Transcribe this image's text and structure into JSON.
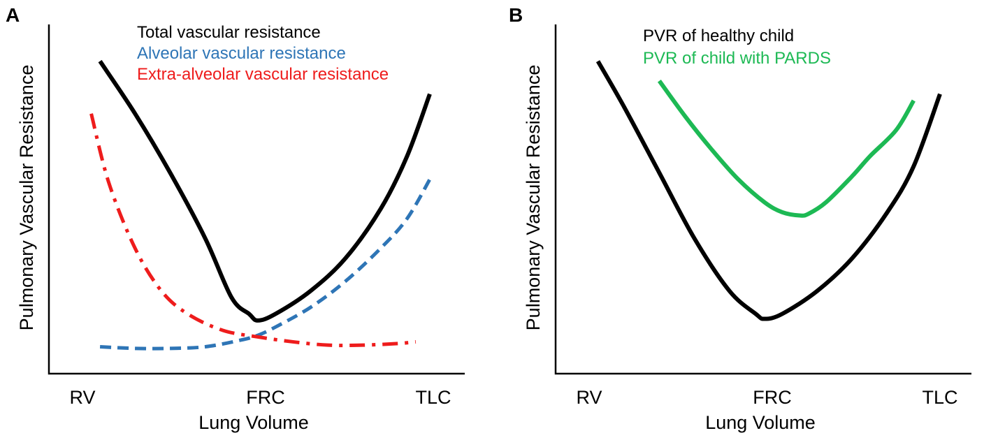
{
  "colors": {
    "total": "#000000",
    "alveolar": "#2E75B6",
    "extra_alveolar": "#EE1C1C",
    "healthy": "#000000",
    "pards": "#1DB954"
  },
  "chart_data": [
    {
      "panel": "A",
      "type": "line",
      "xlabel": "Lung Volume",
      "ylabel": "Pulmonary Vascular Resistance",
      "xtick_labels": [
        "RV",
        "FRC",
        "TLC"
      ],
      "x_range": [
        0,
        2
      ],
      "y_range": [
        0,
        100
      ],
      "grid": false,
      "legend_placement": "top",
      "series": [
        {
          "name": "Total vascular resistance",
          "color_key": "total",
          "style": "solid",
          "x": [
            0.1,
            0.3,
            0.5,
            0.7,
            0.85,
            0.95,
            1.0,
            1.1,
            1.3,
            1.5,
            1.7,
            1.85,
            1.98
          ],
          "y": [
            92,
            76,
            58,
            38,
            20,
            15,
            13,
            15,
            22,
            32,
            47,
            63,
            82
          ]
        },
        {
          "name": "Alveolar vascular resistance",
          "color_key": "alveolar",
          "style": "dashed",
          "x": [
            0.1,
            0.3,
            0.5,
            0.7,
            0.9,
            1.0,
            1.1,
            1.3,
            1.5,
            1.7,
            1.85,
            1.98
          ],
          "y": [
            5,
            4.5,
            4.5,
            5,
            7,
            8.5,
            11,
            17,
            25,
            35,
            44,
            56
          ]
        },
        {
          "name": "Extra-alveolar vascular resistance",
          "color_key": "extra_alveolar",
          "style": "dash-dot",
          "x": [
            0.05,
            0.15,
            0.3,
            0.45,
            0.6,
            0.8,
            1.0,
            1.2,
            1.4,
            1.6,
            1.8,
            1.9
          ],
          "y": [
            76,
            55,
            35,
            22,
            15,
            10,
            8,
            6.5,
            5.5,
            5.5,
            6,
            6.5
          ]
        }
      ]
    },
    {
      "panel": "B",
      "type": "line",
      "xlabel": "Lung Volume",
      "ylabel": "Pulmonary Vascular Resistance",
      "xtick_labels": [
        "RV",
        "FRC",
        "TLC"
      ],
      "x_range": [
        0,
        2
      ],
      "y_range": [
        0,
        100
      ],
      "grid": false,
      "legend_placement": "top",
      "series": [
        {
          "name": "PVR of healthy child",
          "color_key": "healthy",
          "style": "solid",
          "x": [
            0.05,
            0.2,
            0.4,
            0.6,
            0.8,
            0.95,
            1.0,
            1.1,
            1.3,
            1.5,
            1.7,
            1.85,
            2.0
          ],
          "y": [
            92,
            78,
            58,
            38,
            22,
            15,
            13.5,
            15,
            22,
            32,
            46,
            60,
            82
          ]
        },
        {
          "name": "PVR of child with PARDS",
          "color_key": "pards",
          "style": "solid",
          "x": [
            0.4,
            0.55,
            0.7,
            0.85,
            1.0,
            1.1,
            1.2,
            1.25,
            1.35,
            1.5,
            1.6,
            1.75,
            1.85
          ],
          "y": [
            86,
            75,
            65,
            56,
            49,
            46,
            45,
            45.5,
            49,
            57,
            63,
            71,
            80
          ]
        }
      ]
    }
  ]
}
